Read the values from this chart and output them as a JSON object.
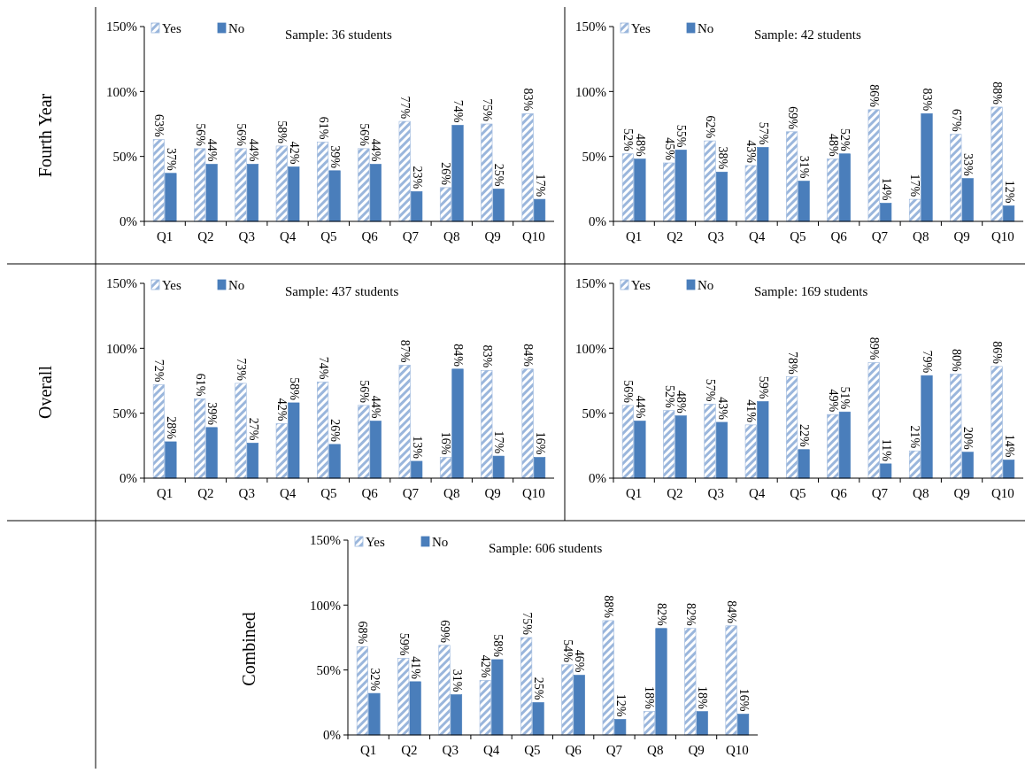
{
  "chart_data": [
    {
      "type": "bar",
      "ylabel": "Fourth Year",
      "categories": [
        "Q1",
        "Q2",
        "Q3",
        "Q4",
        "Q5",
        "Q6",
        "Q7",
        "Q8",
        "Q9",
        "Q10"
      ],
      "ylim": [
        0,
        150
      ],
      "yticks": [
        {
          "value": 0,
          "label": "0%"
        },
        {
          "value": 50,
          "label": "50%"
        },
        {
          "value": 100,
          "label": "100%"
        },
        {
          "value": 150,
          "label": "150%"
        }
      ],
      "legend": "top left",
      "annotations": [
        "Sample: 36 students"
      ],
      "series": [
        {
          "name": "Yes",
          "color": "#9ab6dc",
          "values": [
            63,
            56,
            56,
            58,
            61,
            56,
            77,
            26,
            75,
            83
          ],
          "value_labels": [
            "63%",
            "56%",
            "56%",
            "58%",
            "61%",
            "56%",
            "77%",
            "26%",
            "75%",
            "83%"
          ]
        },
        {
          "name": "No",
          "color": "#4a7ebb",
          "values": [
            37,
            44,
            44,
            42,
            39,
            44,
            23,
            74,
            25,
            17
          ],
          "value_labels": [
            "37%",
            "44%",
            "44%",
            "42%",
            "39%",
            "44%",
            "23%",
            "74%",
            "25%",
            "17%"
          ]
        }
      ]
    },
    {
      "type": "bar",
      "categories": [
        "Q1",
        "Q2",
        "Q3",
        "Q4",
        "Q5",
        "Q6",
        "Q7",
        "Q8",
        "Q9",
        "Q10"
      ],
      "ylim": [
        0,
        150
      ],
      "yticks": [
        {
          "value": 0,
          "label": "0%"
        },
        {
          "value": 50,
          "label": "50%"
        },
        {
          "value": 100,
          "label": "100%"
        },
        {
          "value": 150,
          "label": "150%"
        }
      ],
      "legend": "top left",
      "annotations": [
        "Sample: 42 students"
      ],
      "series": [
        {
          "name": "Yes",
          "color": "#9ab6dc",
          "values": [
            52,
            45,
            62,
            43,
            69,
            48,
            86,
            17,
            67,
            88
          ],
          "value_labels": [
            "52%",
            "45%",
            "62%",
            "43%",
            "69%",
            "48%",
            "86%",
            "17%",
            "67%",
            "88%"
          ]
        },
        {
          "name": "No",
          "color": "#4a7ebb",
          "values": [
            48,
            55,
            38,
            57,
            31,
            52,
            14,
            83,
            33,
            12
          ],
          "value_labels": [
            "48%",
            "55%",
            "38%",
            "57%",
            "31%",
            "52%",
            "14%",
            "83%",
            "33%",
            "12%"
          ]
        }
      ]
    },
    {
      "type": "bar",
      "ylabel": "Overall",
      "categories": [
        "Q1",
        "Q2",
        "Q3",
        "Q4",
        "Q5",
        "Q6",
        "Q7",
        "Q8",
        "Q9",
        "Q10"
      ],
      "ylim": [
        0,
        150
      ],
      "yticks": [
        {
          "value": 0,
          "label": "0%"
        },
        {
          "value": 50,
          "label": "50%"
        },
        {
          "value": 100,
          "label": "100%"
        },
        {
          "value": 150,
          "label": "150%"
        }
      ],
      "legend": "top left",
      "annotations": [
        "Sample: 437 students"
      ],
      "series": [
        {
          "name": "Yes",
          "color": "#9ab6dc",
          "values": [
            72,
            61,
            73,
            42,
            74,
            56,
            87,
            16,
            83,
            84
          ],
          "value_labels": [
            "72%",
            "61%",
            "73%",
            "42%",
            "74%",
            "56%",
            "87%",
            "16%",
            "83%",
            "84%"
          ]
        },
        {
          "name": "No",
          "color": "#4a7ebb",
          "values": [
            28,
            39,
            27,
            58,
            26,
            44,
            13,
            84,
            17,
            16
          ],
          "value_labels": [
            "28%",
            "39%",
            "27%",
            "58%",
            "26%",
            "44%",
            "13%",
            "84%",
            "17%",
            "16%"
          ]
        }
      ]
    },
    {
      "type": "bar",
      "categories": [
        "Q1",
        "Q2",
        "Q3",
        "Q4",
        "Q5",
        "Q6",
        "Q7",
        "Q8",
        "Q9",
        "Q10"
      ],
      "ylim": [
        0,
        150
      ],
      "yticks": [
        {
          "value": 0,
          "label": "0%"
        },
        {
          "value": 50,
          "label": "50%"
        },
        {
          "value": 100,
          "label": "100%"
        },
        {
          "value": 150,
          "label": "150%"
        }
      ],
      "legend": "top left",
      "annotations": [
        "Sample: 169 students"
      ],
      "series": [
        {
          "name": "Yes",
          "color": "#9ab6dc",
          "values": [
            56,
            52,
            57,
            41,
            78,
            49,
            89,
            21,
            80,
            86
          ],
          "value_labels": [
            "56%",
            "52%",
            "57%",
            "41%",
            "78%",
            "49%",
            "89%",
            "21%",
            "80%",
            "86%"
          ]
        },
        {
          "name": "No",
          "color": "#4a7ebb",
          "values": [
            44,
            48,
            43,
            59,
            22,
            51,
            11,
            79,
            20,
            14
          ],
          "value_labels": [
            "44%",
            "48%",
            "43%",
            "59%",
            "22%",
            "51%",
            "11%",
            "79%",
            "20%",
            "14%"
          ]
        }
      ]
    },
    {
      "type": "bar",
      "ylabel": "Combined",
      "categories": [
        "Q1",
        "Q2",
        "Q3",
        "Q4",
        "Q5",
        "Q6",
        "Q7",
        "Q8",
        "Q9",
        "Q10"
      ],
      "ylim": [
        0,
        150
      ],
      "yticks": [
        {
          "value": 0,
          "label": "0%"
        },
        {
          "value": 50,
          "label": "50%"
        },
        {
          "value": 100,
          "label": "100%"
        },
        {
          "value": 150,
          "label": "150%"
        }
      ],
      "legend": "top left",
      "annotations": [
        "Sample: 606 students"
      ],
      "series": [
        {
          "name": "Yes",
          "color": "#9ab6dc",
          "values": [
            68,
            59,
            69,
            42,
            75,
            54,
            88,
            18,
            82,
            84
          ],
          "value_labels": [
            "68%",
            "59%",
            "69%",
            "42%",
            "75%",
            "54%",
            "88%",
            "18%",
            "82%",
            "84%"
          ]
        },
        {
          "name": "No",
          "color": "#4a7ebb",
          "values": [
            32,
            41,
            31,
            58,
            25,
            46,
            12,
            82,
            18,
            16
          ],
          "value_labels": [
            "32%",
            "41%",
            "31%",
            "58%",
            "25%",
            "46%",
            "12%",
            "82%",
            "18%",
            "16%"
          ]
        }
      ]
    }
  ]
}
